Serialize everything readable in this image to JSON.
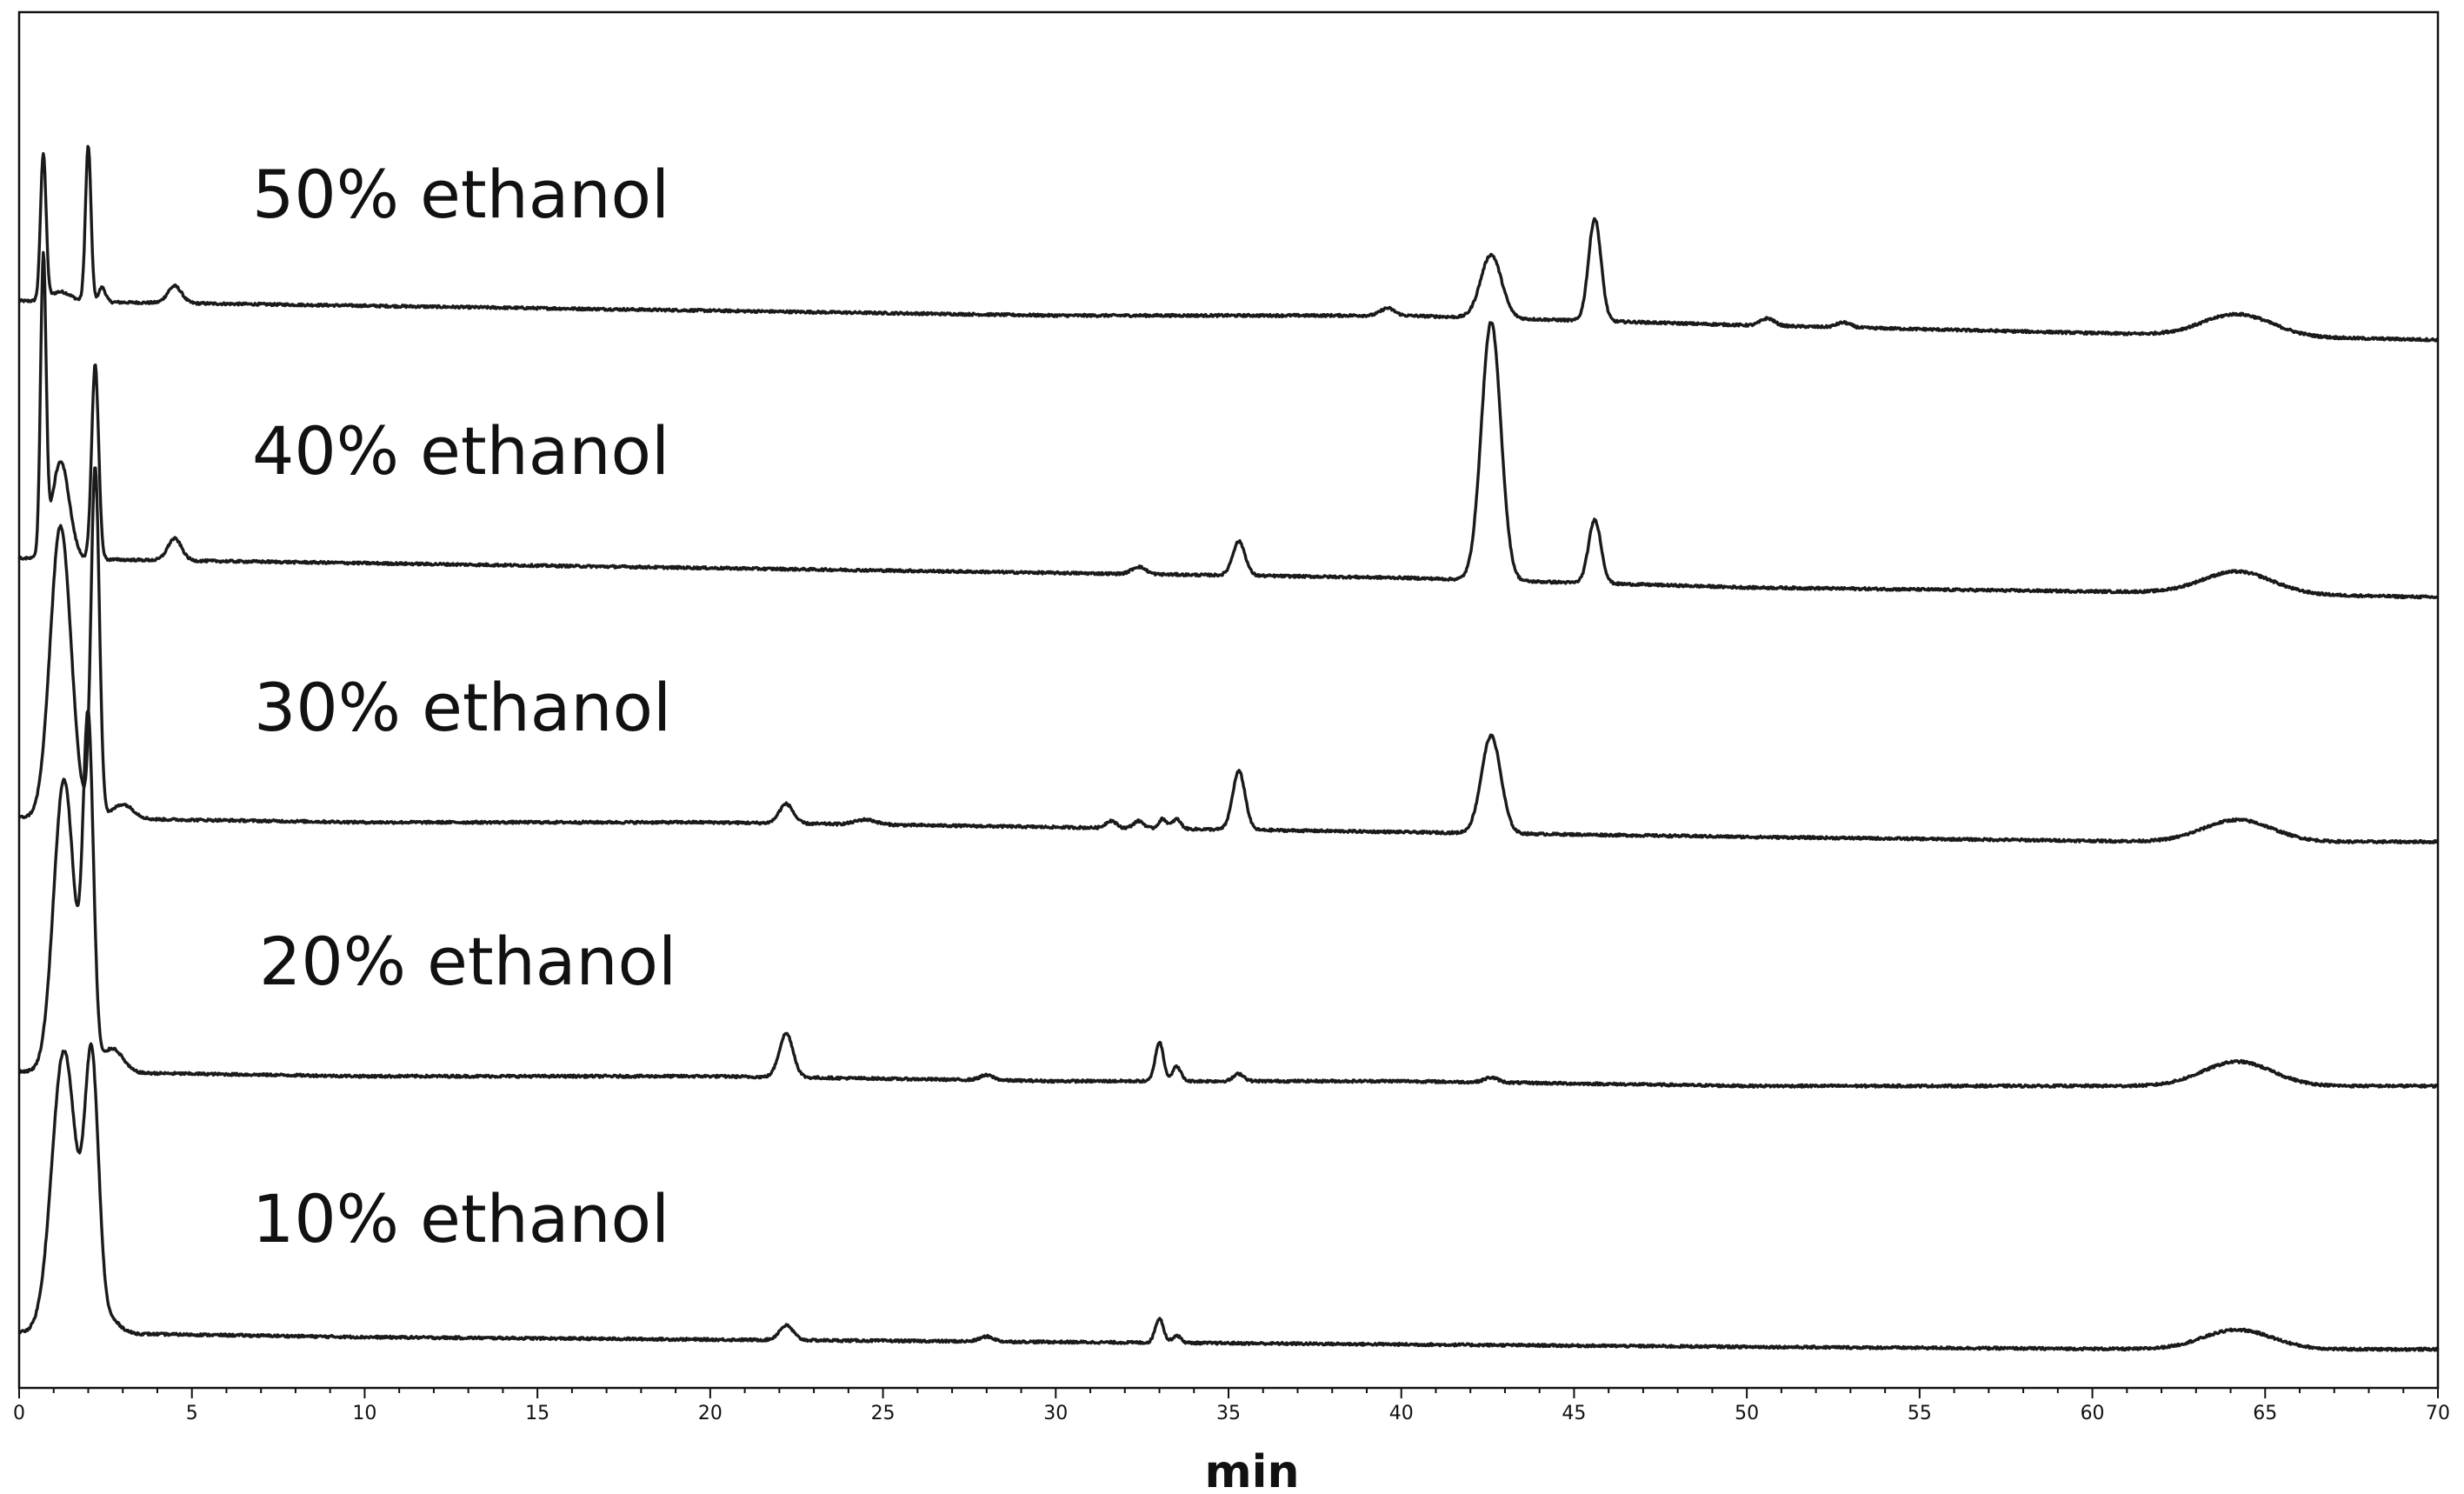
{
  "chart_data": {
    "type": "line",
    "xlabel": "min",
    "xlim": [
      0,
      70
    ],
    "x_ticks": [
      0,
      5,
      10,
      15,
      20,
      25,
      30,
      35,
      40,
      45,
      50,
      55,
      60,
      65,
      70
    ],
    "grid": false,
    "legend": "none",
    "series": [
      {
        "name": "50% ethanol",
        "baseline": [
          [
            0,
            0
          ],
          [
            10,
            -1
          ],
          [
            20,
            -2
          ],
          [
            30,
            -3
          ],
          [
            40,
            -3
          ],
          [
            50,
            -5
          ],
          [
            62.5,
            -7
          ],
          [
            70,
            -8
          ]
        ],
        "peaks": [
          {
            "rt": 0.7,
            "height": 30,
            "width": 0.08
          },
          {
            "rt": 1.2,
            "height": 2,
            "width": 0.3
          },
          {
            "rt": 2.0,
            "height": 32,
            "width": 0.08
          },
          {
            "rt": 2.4,
            "height": 3,
            "width": 0.1
          },
          {
            "rt": 4.5,
            "height": 3.5,
            "width": 0.2
          },
          {
            "rt": 39.6,
            "height": 1.5,
            "width": 0.2
          },
          {
            "rt": 42.6,
            "height": 13,
            "width": 0.3
          },
          {
            "rt": 45.6,
            "height": 21,
            "width": 0.18
          },
          {
            "rt": 50.6,
            "height": 1.5,
            "width": 0.2
          },
          {
            "rt": 52.8,
            "height": 1,
            "width": 0.2
          },
          {
            "rt": 64.2,
            "height": 4.5,
            "width": 1.0
          }
        ]
      },
      {
        "name": "40% ethanol",
        "baseline": [
          [
            0,
            0
          ],
          [
            10,
            -1
          ],
          [
            20,
            -2
          ],
          [
            30,
            -3
          ],
          [
            40,
            -4
          ],
          [
            50,
            -6
          ],
          [
            62.5,
            -7
          ],
          [
            70,
            -8
          ]
        ],
        "peaks": [
          {
            "rt": 0.7,
            "height": 60,
            "width": 0.08
          },
          {
            "rt": 1.2,
            "height": 20,
            "width": 0.25
          },
          {
            "rt": 2.2,
            "height": 40,
            "width": 0.1
          },
          {
            "rt": 4.5,
            "height": 4.5,
            "width": 0.2
          },
          {
            "rt": 32.4,
            "height": 1.5,
            "width": 0.2
          },
          {
            "rt": 35.3,
            "height": 7,
            "width": 0.18
          },
          {
            "rt": 42.6,
            "height": 53,
            "width": 0.28
          },
          {
            "rt": 45.6,
            "height": 13,
            "width": 0.18
          },
          {
            "rt": 64.2,
            "height": 4.5,
            "width": 1.0
          }
        ]
      },
      {
        "name": "30% ethanol",
        "baseline": [
          [
            0,
            0
          ],
          [
            10,
            -1
          ],
          [
            20,
            -1
          ],
          [
            30,
            -2
          ],
          [
            40,
            -3
          ],
          [
            50,
            -4
          ],
          [
            62.5,
            -5
          ],
          [
            70,
            -5
          ]
        ],
        "peaks": [
          {
            "rt": 1.2,
            "height": 60,
            "width": 0.3
          },
          {
            "rt": 2.2,
            "height": 72,
            "width": 0.12
          },
          {
            "rt": 3.0,
            "height": 3,
            "width": 0.3
          },
          {
            "rt": 22.2,
            "height": 4,
            "width": 0.2
          },
          {
            "rt": 24.5,
            "height": 1,
            "width": 0.3
          },
          {
            "rt": 31.6,
            "height": 1.5,
            "width": 0.15
          },
          {
            "rt": 32.4,
            "height": 1.5,
            "width": 0.15
          },
          {
            "rt": 33.1,
            "height": 2,
            "width": 0.12
          },
          {
            "rt": 33.5,
            "height": 2,
            "width": 0.12
          },
          {
            "rt": 35.3,
            "height": 12,
            "width": 0.18
          },
          {
            "rt": 42.6,
            "height": 20,
            "width": 0.28
          },
          {
            "rt": 64.2,
            "height": 4.5,
            "width": 1.0
          }
        ]
      },
      {
        "name": "20% ethanol",
        "baseline": [
          [
            0,
            0
          ],
          [
            10,
            -1
          ],
          [
            20,
            -1
          ],
          [
            30,
            -2
          ],
          [
            40,
            -2
          ],
          [
            50,
            -3
          ],
          [
            62.5,
            -3
          ],
          [
            70,
            -3
          ]
        ],
        "peaks": [
          {
            "rt": 1.3,
            "height": 60,
            "width": 0.3
          },
          {
            "rt": 2.0,
            "height": 70,
            "width": 0.15
          },
          {
            "rt": 2.7,
            "height": 5,
            "width": 0.3
          },
          {
            "rt": 22.2,
            "height": 9,
            "width": 0.2
          },
          {
            "rt": 28.0,
            "height": 1,
            "width": 0.2
          },
          {
            "rt": 33.0,
            "height": 8,
            "width": 0.12
          },
          {
            "rt": 33.5,
            "height": 3,
            "width": 0.12
          },
          {
            "rt": 35.3,
            "height": 1.5,
            "width": 0.15
          },
          {
            "rt": 42.6,
            "height": 1,
            "width": 0.2
          },
          {
            "rt": 64.2,
            "height": 5,
            "width": 1.0
          }
        ]
      },
      {
        "name": "10% ethanol",
        "baseline": [
          [
            0,
            0
          ],
          [
            10,
            -1
          ],
          [
            20,
            -1.5
          ],
          [
            30,
            -2
          ],
          [
            40,
            -2.5
          ],
          [
            50,
            -3
          ],
          [
            62.5,
            -3.5
          ],
          [
            70,
            -3.5
          ]
        ],
        "peaks": [
          {
            "rt": 1.3,
            "height": 58,
            "width": 0.35
          },
          {
            "rt": 2.1,
            "height": 54,
            "width": 0.2
          },
          {
            "rt": 2.6,
            "height": 3,
            "width": 0.3
          },
          {
            "rt": 22.2,
            "height": 3,
            "width": 0.2
          },
          {
            "rt": 28.0,
            "height": 1,
            "width": 0.2
          },
          {
            "rt": 33.0,
            "height": 5,
            "width": 0.12
          },
          {
            "rt": 33.5,
            "height": 1.5,
            "width": 0.12
          },
          {
            "rt": 64.2,
            "height": 4,
            "width": 1.0
          }
        ]
      }
    ]
  }
}
